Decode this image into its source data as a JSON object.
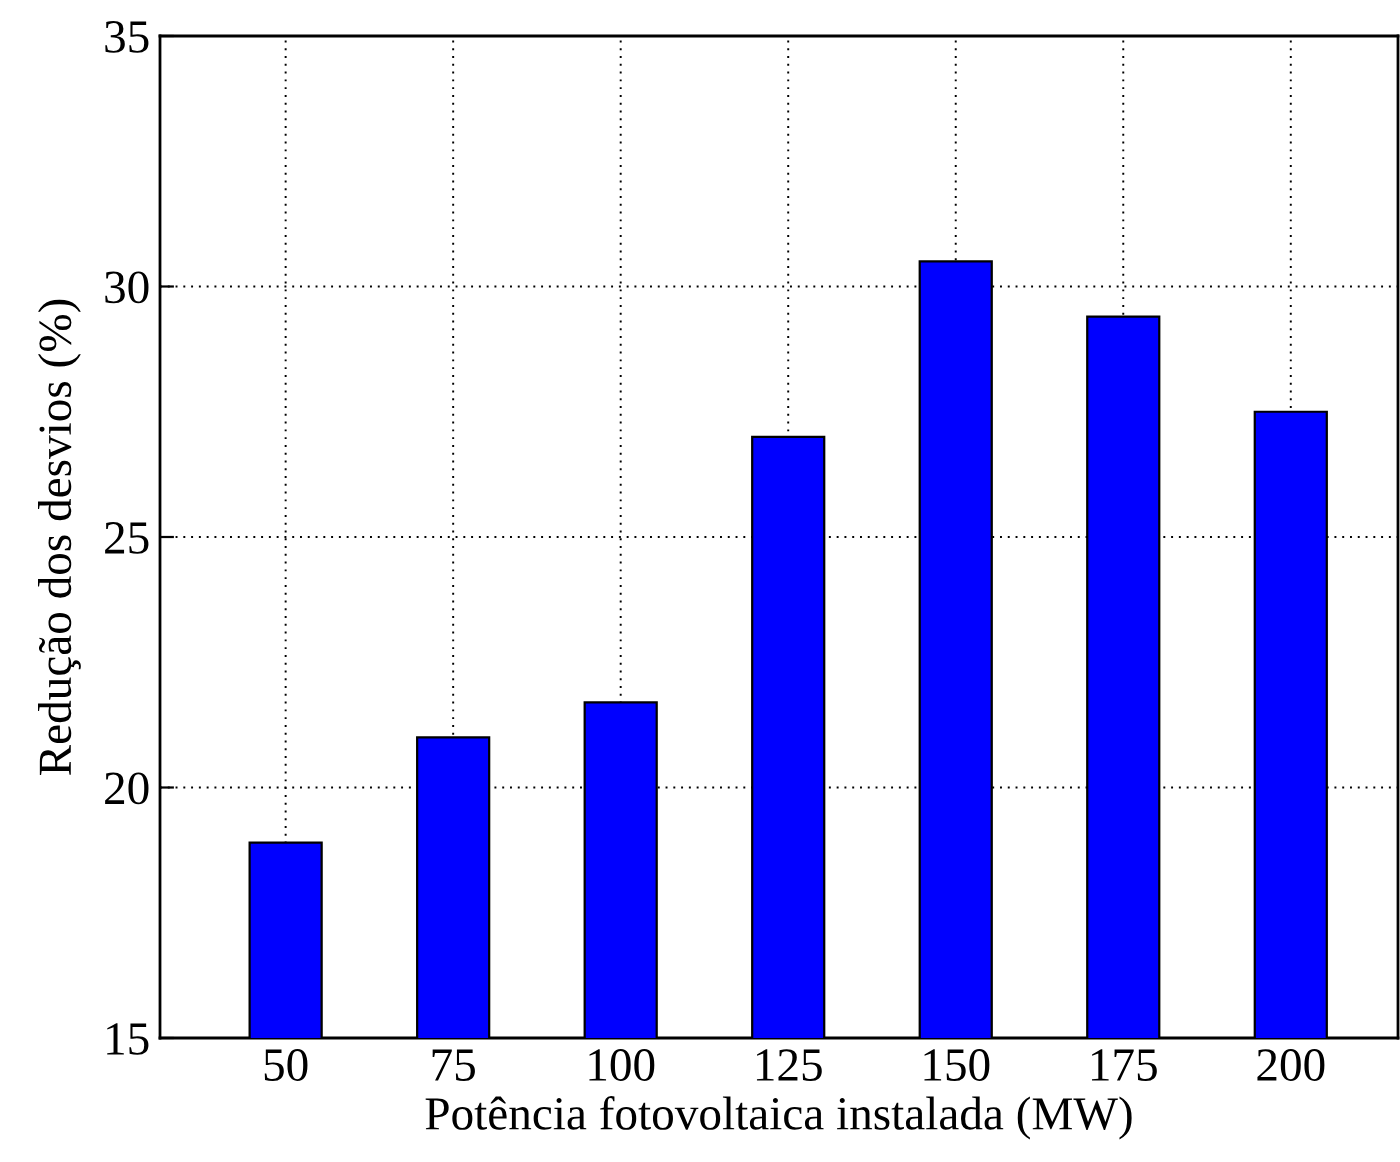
{
  "chart_data": {
    "type": "bar",
    "xlabel": "Potência fotovoltaica instalada (MW)",
    "ylabel": "Redução dos desvios (%)",
    "categories": [
      "50",
      "75",
      "100",
      "125",
      "150",
      "175",
      "200"
    ],
    "values": [
      18.9,
      21.0,
      21.7,
      27.0,
      30.5,
      29.4,
      27.5
    ],
    "color": "#0000ff",
    "ylim": [
      15,
      35
    ],
    "yticks": [
      15,
      20,
      25,
      30,
      35
    ],
    "grid": true
  }
}
